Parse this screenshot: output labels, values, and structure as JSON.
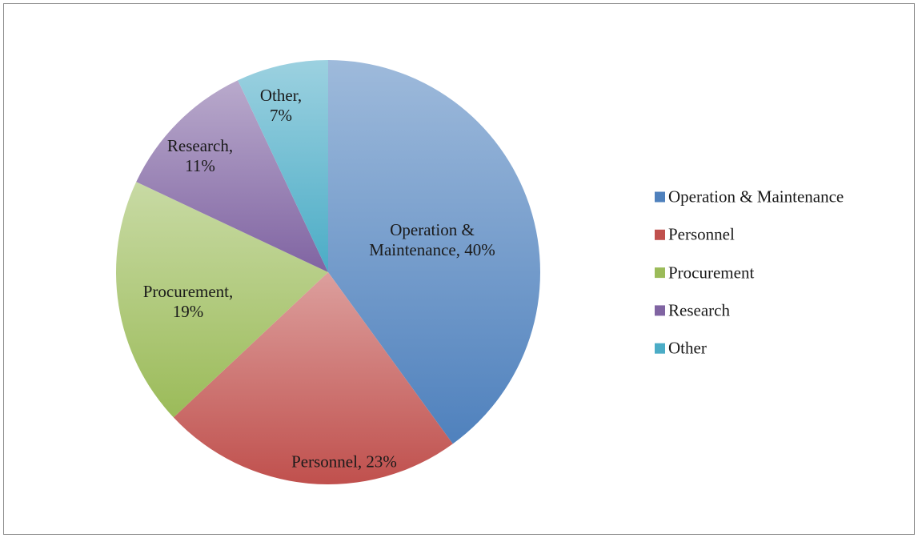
{
  "chart_data": {
    "type": "pie",
    "categories": [
      "Operation & Maintenance",
      "Personnel",
      "Procurement",
      "Research",
      "Other"
    ],
    "values": [
      40,
      23,
      19,
      11,
      7
    ],
    "value_labels": [
      "Operation & Maintenance, 40%",
      "Personnel, 23%",
      "Procurement, 19%",
      "Research, 11%",
      "Other, 7%"
    ],
    "colors": [
      "#4f81bd",
      "#c0504d",
      "#9bbb59",
      "#8064a2",
      "#4bacc6"
    ],
    "legend": "right"
  }
}
